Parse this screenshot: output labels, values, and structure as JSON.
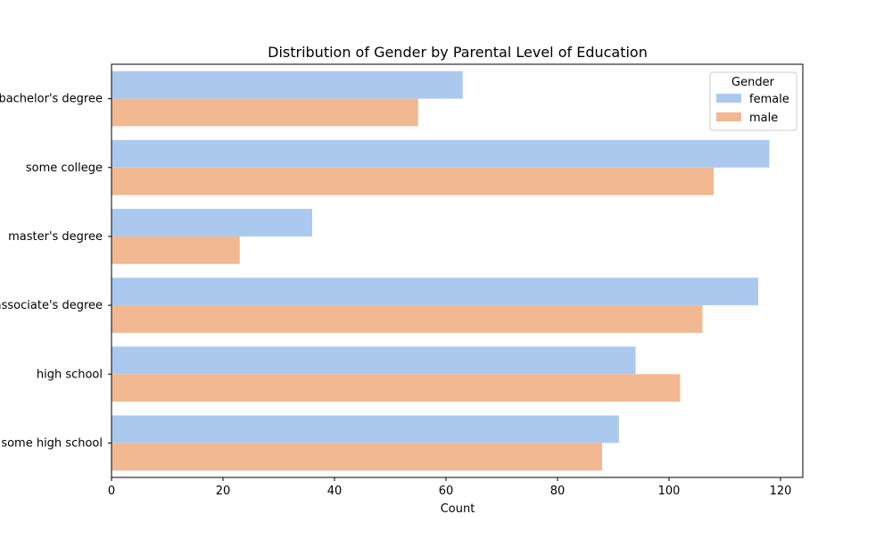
{
  "chart_data": {
    "type": "bar",
    "orientation": "horizontal",
    "title": "Distribution of Gender by Parental Level of Education",
    "xlabel": "Count",
    "ylabel": "",
    "xlim": [
      0,
      124
    ],
    "x_ticks": [
      0,
      20,
      40,
      60,
      80,
      100,
      120
    ],
    "grid": false,
    "categories": [
      "bachelor's degree",
      "some college",
      "master's degree",
      "associate's degree",
      "high school",
      "some high school"
    ],
    "series": [
      {
        "name": "female",
        "color": "#abc9ef",
        "values": [
          63,
          118,
          36,
          116,
          94,
          91
        ]
      },
      {
        "name": "male",
        "color": "#f1b891",
        "values": [
          55,
          108,
          23,
          106,
          102,
          88
        ]
      }
    ],
    "legend": {
      "title": "Gender",
      "position": "top-right"
    }
  }
}
